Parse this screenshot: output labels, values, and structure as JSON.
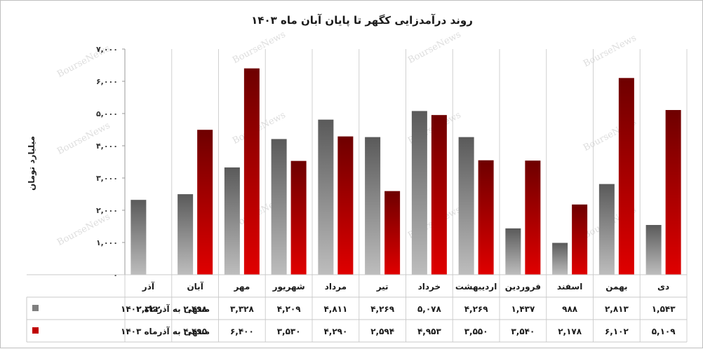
{
  "chart_data": {
    "type": "bar",
    "title": "روند درآمدزایی کگهر تا پایان آبان ماه ۱۴۰۳",
    "ylabel": "میلیارد تومان",
    "ylim": [
      0,
      7000
    ],
    "yticks": [
      0,
      1000,
      2000,
      3000,
      4000,
      5000,
      6000,
      7000
    ],
    "ytick_labels": [
      "۰",
      "۱,۰۰۰",
      "۲,۰۰۰",
      "۳,۰۰۰",
      "۴,۰۰۰",
      "۵,۰۰۰",
      "۶,۰۰۰",
      "۷,۰۰۰"
    ],
    "categories": [
      "آذر",
      "آبان",
      "مهر",
      "شهریور",
      "مرداد",
      "تیر",
      "خرداد",
      "اردیبهشت",
      "فروردین",
      "اسفند",
      "بهمن",
      "دی"
    ],
    "series": [
      {
        "name": "منتهی به آذرماه ۱۴۰۲",
        "color": "#7f7f7f",
        "values": [
          2322,
          2498,
          3328,
          4209,
          4811,
          4269,
          5078,
          4269,
          1437,
          988,
          2813,
          1543
        ],
        "labels": [
          "۲,۳۲۲",
          "۲,۴۹۸",
          "۳,۳۲۸",
          "۴,۲۰۹",
          "۴,۸۱۱",
          "۴,۲۶۹",
          "۵,۰۷۸",
          "۴,۲۶۹",
          "۱,۴۳۷",
          "۹۸۸",
          "۲,۸۱۳",
          "۱,۵۴۳"
        ]
      },
      {
        "name": "منتهی به آذرماه ۱۴۰۳",
        "color": "#c00000",
        "values": [
          null,
          4495,
          6400,
          3530,
          4290,
          2594,
          4953,
          3550,
          3540,
          2178,
          6102,
          5109
        ],
        "labels": [
          "",
          "۴,۴۹۵",
          "۶,۴۰۰",
          "۳,۵۳۰",
          "۴,۲۹۰",
          "۲,۵۹۴",
          "۴,۹۵۳",
          "۳,۵۵۰",
          "۳,۵۴۰",
          "۲,۱۷۸",
          "۶,۱۰۲",
          "۵,۱۰۹"
        ]
      }
    ],
    "grid": true,
    "legend": "data-table-left",
    "watermark": "BourseNews"
  }
}
